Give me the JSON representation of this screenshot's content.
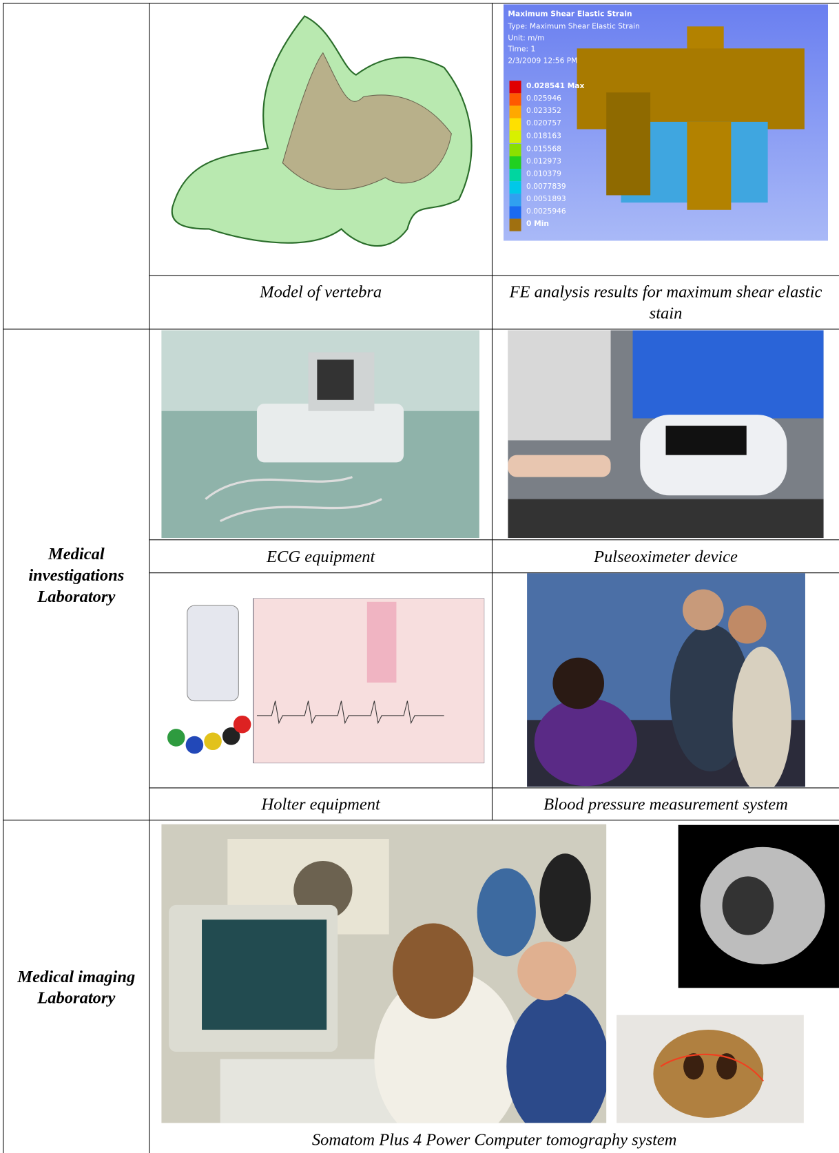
{
  "table": {
    "rows": [
      {
        "cells": [
          {
            "caption": "Model of vertebra"
          },
          {
            "caption": "FE analysis results for maximum shear elastic stain",
            "figure": {
              "title": "Maximum Shear Elastic Strain",
              "info": [
                "Type: Maximum Shear Elastic Strain",
                "Unit: m/m",
                "Time: 1",
                "2/3/2009 12:56 PM"
              ],
              "legend": [
                "0.028541 Max",
                "0.025946",
                "0.023352",
                "0.020757",
                "0.018163",
                "0.015568",
                "0.012973",
                "0.010379",
                "0.0077839",
                "0.0051893",
                "0.0025946",
                "0 Min"
              ]
            }
          }
        ]
      },
      {
        "label": "Medical investigations Laboratory",
        "cells": [
          {
            "caption": "ECG equipment"
          },
          {
            "caption": "Pulseoximeter device"
          },
          {
            "caption": "Holter equipment"
          },
          {
            "caption": "Blood pressure measurement system"
          }
        ]
      },
      {
        "label": "Medical imaging Laboratory",
        "cells": [
          {
            "caption": "Somatom Plus 4 Power Computer tomography system"
          }
        ]
      }
    ]
  }
}
